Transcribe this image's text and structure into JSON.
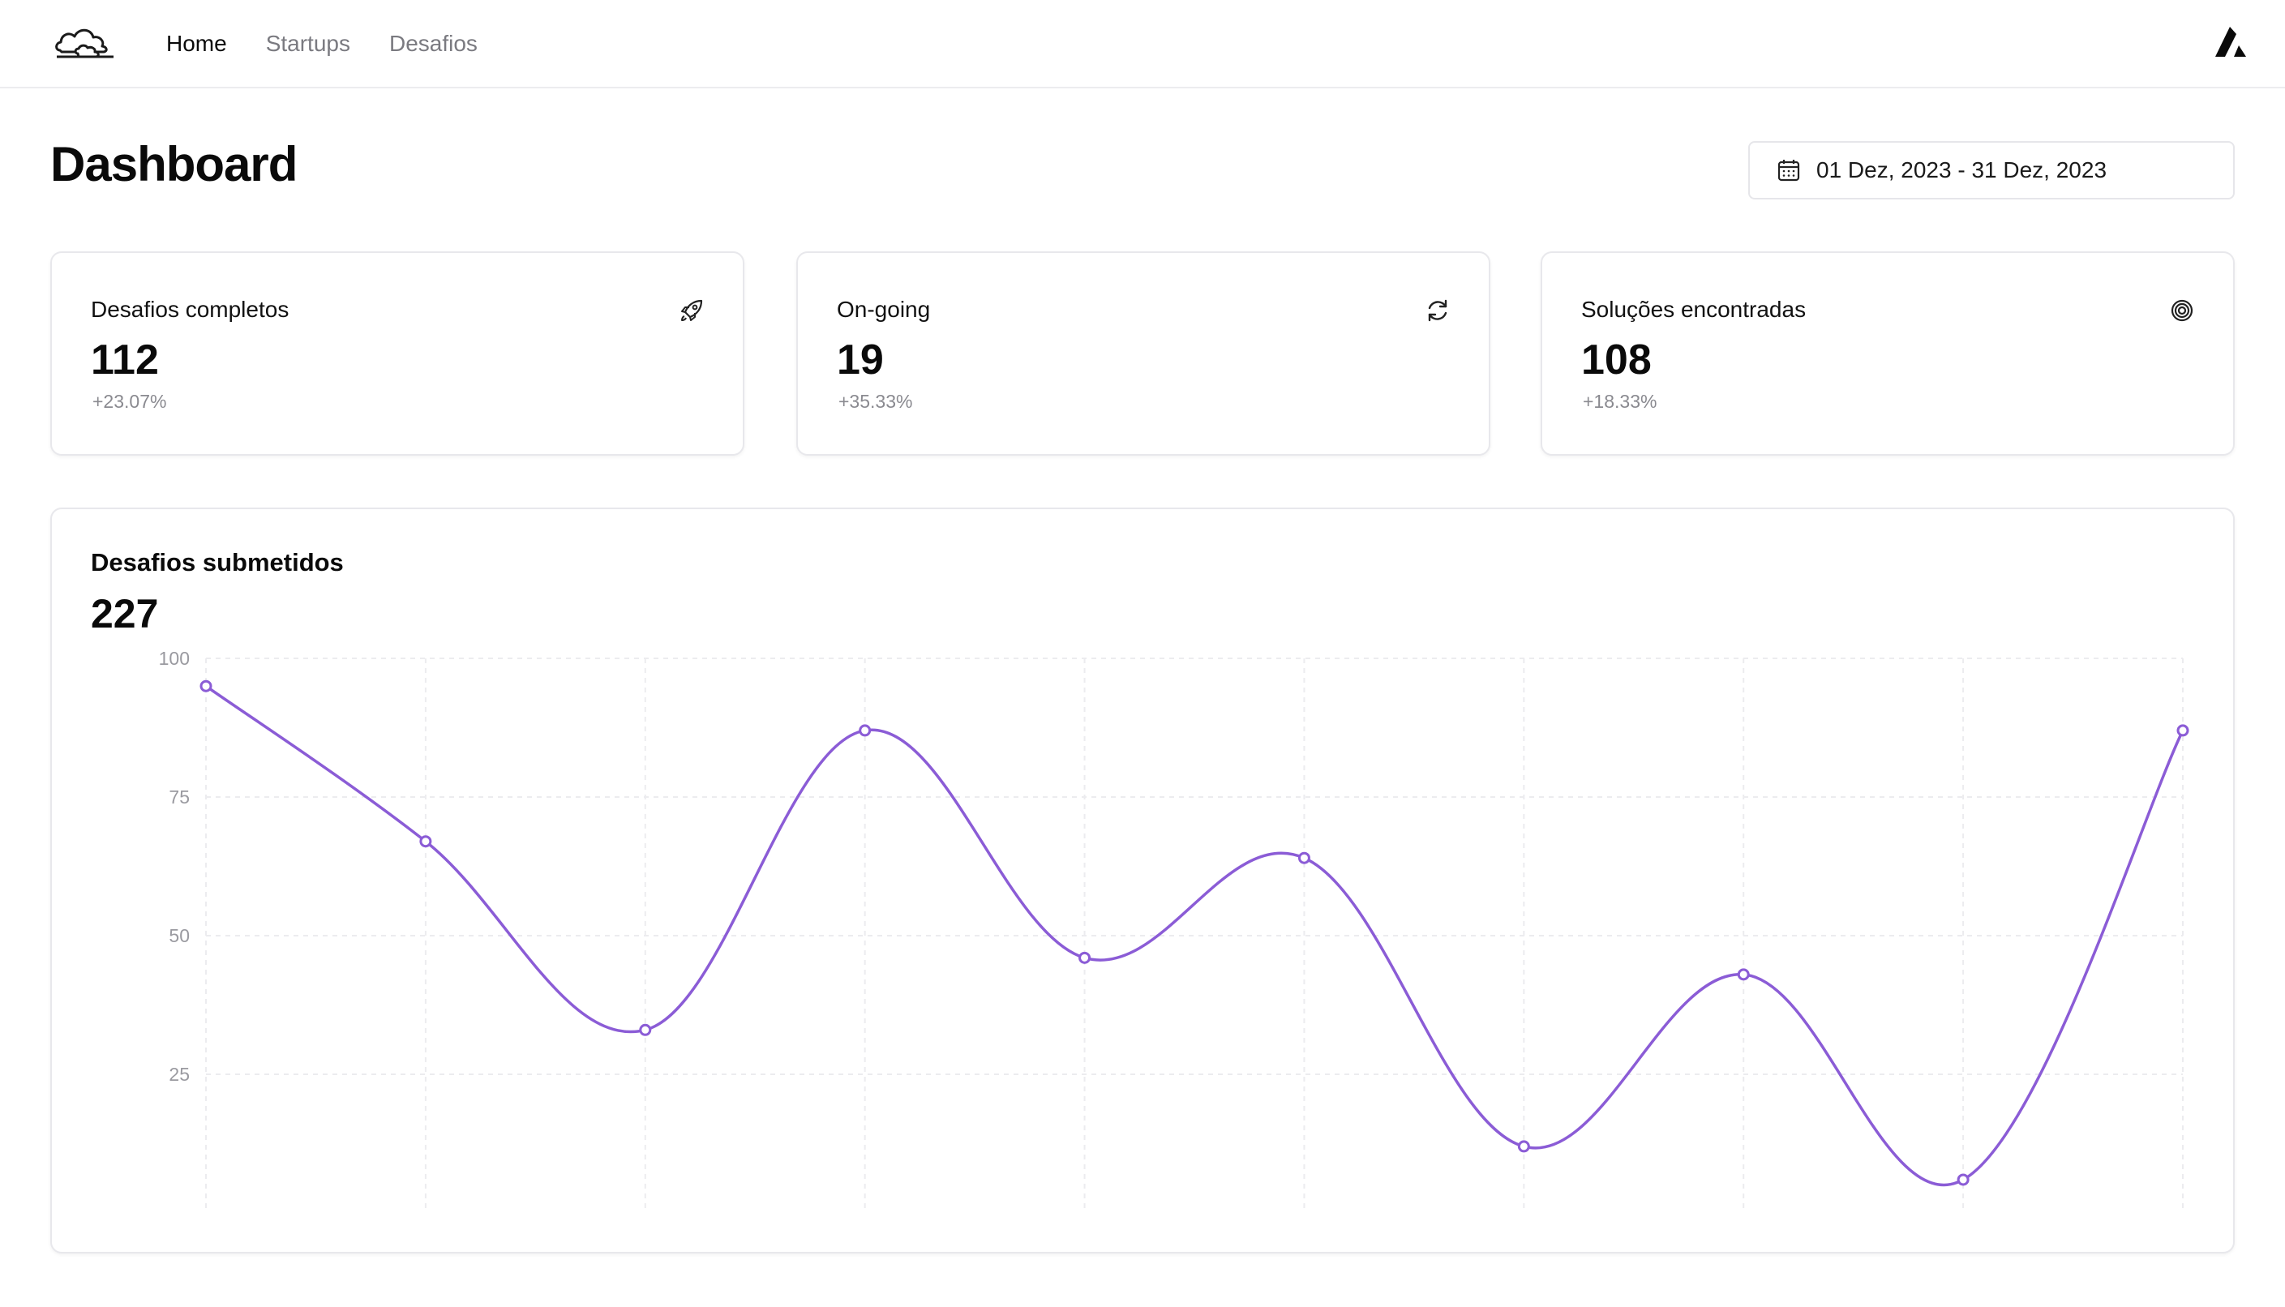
{
  "nav": {
    "items": [
      {
        "label": "Home",
        "active": true
      },
      {
        "label": "Startups",
        "active": false
      },
      {
        "label": "Desafios",
        "active": false
      }
    ]
  },
  "page": {
    "title": "Dashboard",
    "date_range": "01 Dez, 2023 - 31 Dez, 2023"
  },
  "cards": [
    {
      "label": "Desafios completos",
      "value": "112",
      "delta": "+23.07%",
      "icon": "rocket-icon"
    },
    {
      "label": "On-going",
      "value": "19",
      "delta": "+35.33%",
      "icon": "refresh-icon"
    },
    {
      "label": "Soluções encontradas",
      "value": "108",
      "delta": "+18.33%",
      "icon": "target-icon"
    }
  ],
  "chart": {
    "title": "Desafios submetidos",
    "total": "227"
  },
  "colors": {
    "accent": "#8b5cd6",
    "grid": "#ececef",
    "border": "#e8e8ec",
    "muted": "#8a8a90"
  },
  "chart_data": {
    "type": "line",
    "title": "Desafios submetidos",
    "x": [
      1,
      2,
      3,
      4,
      5,
      6,
      7,
      8,
      9,
      10
    ],
    "series": [
      {
        "values": [
          95,
          67,
          33,
          87,
          46,
          64,
          12,
          43,
          6,
          87
        ]
      }
    ],
    "ylim": [
      0,
      100
    ],
    "yticks": [
      25,
      50,
      75,
      100
    ],
    "grid": true,
    "smooth": true,
    "markers": true
  }
}
